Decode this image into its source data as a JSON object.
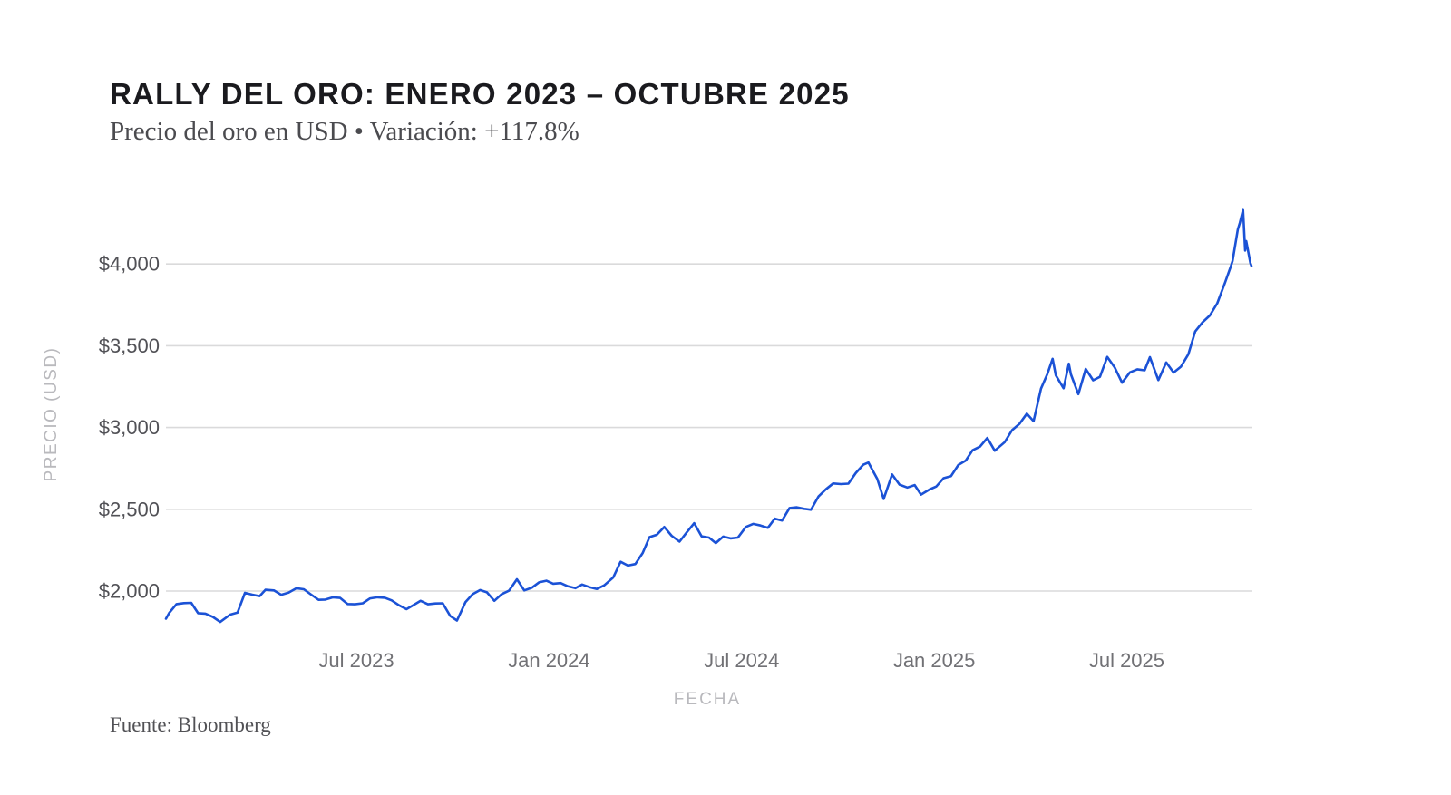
{
  "header": {
    "title": "RALLY DEL ORO: ENERO 2023 – OCTUBRE 2025",
    "subtitle": "Precio del oro en USD • Variación: +117.8%"
  },
  "source": "Fuente: Bloomberg",
  "chart_data": {
    "type": "line",
    "title": "RALLY DEL ORO: ENERO 2023 – OCTUBRE 2025",
    "subtitle": "Precio del oro en USD • Variación: +117.8%",
    "change_pct": "+117.8%",
    "xlabel": "FECHA",
    "ylabel": "PRECIO (USD)",
    "x_range": [
      "2023-01-03",
      "2025-10-28"
    ],
    "ylim": [
      1780,
      4440
    ],
    "grid": true,
    "legend": "none",
    "line_color": "#1b52d6",
    "gridline_color": "#dadadb",
    "y_ticks": [
      {
        "value": 2000,
        "label": "$2,000"
      },
      {
        "value": 2500,
        "label": "$2,500"
      },
      {
        "value": 3000,
        "label": "$3,000"
      },
      {
        "value": 3500,
        "label": "$3,500"
      },
      {
        "value": 4000,
        "label": "$4,000"
      }
    ],
    "x_ticks": [
      {
        "date": "2023-07-01",
        "label": "Jul 2023"
      },
      {
        "date": "2024-01-01",
        "label": "Jan 2024"
      },
      {
        "date": "2024-07-01",
        "label": "Jul 2024"
      },
      {
        "date": "2025-01-01",
        "label": "Jan 2025"
      },
      {
        "date": "2025-07-01",
        "label": "Jul 2025"
      }
    ],
    "series": [
      {
        "name": "Precio del oro (USD)",
        "points": [
          [
            "2023-01-03",
            1831
          ],
          [
            "2023-01-06",
            1866
          ],
          [
            "2023-01-13",
            1920
          ],
          [
            "2023-01-20",
            1926
          ],
          [
            "2023-01-27",
            1928
          ],
          [
            "2023-02-03",
            1865
          ],
          [
            "2023-02-10",
            1862
          ],
          [
            "2023-02-17",
            1842
          ],
          [
            "2023-02-24",
            1811
          ],
          [
            "2023-03-03",
            1856
          ],
          [
            "2023-03-10",
            1868
          ],
          [
            "2023-03-17",
            1989
          ],
          [
            "2023-03-24",
            1978
          ],
          [
            "2023-03-31",
            1969
          ],
          [
            "2023-04-06",
            2008
          ],
          [
            "2023-04-14",
            2004
          ],
          [
            "2023-04-21",
            1977
          ],
          [
            "2023-04-28",
            1990
          ],
          [
            "2023-05-05",
            2017
          ],
          [
            "2023-05-12",
            2011
          ],
          [
            "2023-05-19",
            1978
          ],
          [
            "2023-05-26",
            1946
          ],
          [
            "2023-06-02",
            1948
          ],
          [
            "2023-06-09",
            1961
          ],
          [
            "2023-06-16",
            1958
          ],
          [
            "2023-06-23",
            1921
          ],
          [
            "2023-06-30",
            1919
          ],
          [
            "2023-07-07",
            1925
          ],
          [
            "2023-07-14",
            1955
          ],
          [
            "2023-07-21",
            1962
          ],
          [
            "2023-07-28",
            1959
          ],
          [
            "2023-08-04",
            1943
          ],
          [
            "2023-08-11",
            1913
          ],
          [
            "2023-08-18",
            1889
          ],
          [
            "2023-08-25",
            1915
          ],
          [
            "2023-09-01",
            1940
          ],
          [
            "2023-09-08",
            1919
          ],
          [
            "2023-09-15",
            1924
          ],
          [
            "2023-09-22",
            1925
          ],
          [
            "2023-09-29",
            1848
          ],
          [
            "2023-10-05",
            1820
          ],
          [
            "2023-10-13",
            1932
          ],
          [
            "2023-10-20",
            1981
          ],
          [
            "2023-10-27",
            2006
          ],
          [
            "2023-11-03",
            1992
          ],
          [
            "2023-11-10",
            1940
          ],
          [
            "2023-11-17",
            1981
          ],
          [
            "2023-11-24",
            2002
          ],
          [
            "2023-12-01",
            2072
          ],
          [
            "2023-12-08",
            2004
          ],
          [
            "2023-12-15",
            2020
          ],
          [
            "2023-12-22",
            2053
          ],
          [
            "2023-12-29",
            2063
          ],
          [
            "2024-01-05",
            2045
          ],
          [
            "2024-01-12",
            2049
          ],
          [
            "2024-01-19",
            2029
          ],
          [
            "2024-01-26",
            2018
          ],
          [
            "2024-02-02",
            2040
          ],
          [
            "2024-02-09",
            2024
          ],
          [
            "2024-02-16",
            2013
          ],
          [
            "2024-02-23",
            2035
          ],
          [
            "2024-03-01",
            2083
          ],
          [
            "2024-03-08",
            2179
          ],
          [
            "2024-03-15",
            2156
          ],
          [
            "2024-03-22",
            2165
          ],
          [
            "2024-03-29",
            2233
          ],
          [
            "2024-04-05",
            2330
          ],
          [
            "2024-04-12",
            2344
          ],
          [
            "2024-04-19",
            2392
          ],
          [
            "2024-04-26",
            2338
          ],
          [
            "2024-05-03",
            2302
          ],
          [
            "2024-05-10",
            2360
          ],
          [
            "2024-05-17",
            2415
          ],
          [
            "2024-05-24",
            2334
          ],
          [
            "2024-05-31",
            2327
          ],
          [
            "2024-06-07",
            2293
          ],
          [
            "2024-06-14",
            2333
          ],
          [
            "2024-06-21",
            2322
          ],
          [
            "2024-06-28",
            2327
          ],
          [
            "2024-07-05",
            2392
          ],
          [
            "2024-07-12",
            2411
          ],
          [
            "2024-07-19",
            2401
          ],
          [
            "2024-07-26",
            2387
          ],
          [
            "2024-08-02",
            2443
          ],
          [
            "2024-08-09",
            2431
          ],
          [
            "2024-08-16",
            2508
          ],
          [
            "2024-08-23",
            2512
          ],
          [
            "2024-08-30",
            2503
          ],
          [
            "2024-09-06",
            2497
          ],
          [
            "2024-09-13",
            2578
          ],
          [
            "2024-09-20",
            2622
          ],
          [
            "2024-09-27",
            2658
          ],
          [
            "2024-10-04",
            2654
          ],
          [
            "2024-10-11",
            2657
          ],
          [
            "2024-10-18",
            2722
          ],
          [
            "2024-10-25",
            2772
          ],
          [
            "2024-10-30",
            2786
          ],
          [
            "2024-11-08",
            2685
          ],
          [
            "2024-11-14",
            2563
          ],
          [
            "2024-11-22",
            2713
          ],
          [
            "2024-11-29",
            2651
          ],
          [
            "2024-12-06",
            2633
          ],
          [
            "2024-12-13",
            2648
          ],
          [
            "2024-12-19",
            2590
          ],
          [
            "2024-12-27",
            2621
          ],
          [
            "2025-01-03",
            2639
          ],
          [
            "2025-01-10",
            2690
          ],
          [
            "2025-01-17",
            2703
          ],
          [
            "2025-01-24",
            2771
          ],
          [
            "2025-01-31",
            2798
          ],
          [
            "2025-02-07",
            2861
          ],
          [
            "2025-02-14",
            2883
          ],
          [
            "2025-02-21",
            2936
          ],
          [
            "2025-02-28",
            2858
          ],
          [
            "2025-03-07",
            2910
          ],
          [
            "2025-03-14",
            2984
          ],
          [
            "2025-03-21",
            3022
          ],
          [
            "2025-03-28",
            3085
          ],
          [
            "2025-04-04",
            3038
          ],
          [
            "2025-04-11",
            3238
          ],
          [
            "2025-04-17",
            3327
          ],
          [
            "2025-04-22",
            3420
          ],
          [
            "2025-04-25",
            3320
          ],
          [
            "2025-05-02",
            3240
          ],
          [
            "2025-05-07",
            3390
          ],
          [
            "2025-05-09",
            3325
          ],
          [
            "2025-05-16",
            3204
          ],
          [
            "2025-05-23",
            3358
          ],
          [
            "2025-05-30",
            3289
          ],
          [
            "2025-06-06",
            3310
          ],
          [
            "2025-06-13",
            3432
          ],
          [
            "2025-06-20",
            3368
          ],
          [
            "2025-06-27",
            3274
          ],
          [
            "2025-07-04",
            3337
          ],
          [
            "2025-07-11",
            3356
          ],
          [
            "2025-07-18",
            3350
          ],
          [
            "2025-07-23",
            3430
          ],
          [
            "2025-07-31",
            3290
          ],
          [
            "2025-08-08",
            3398
          ],
          [
            "2025-08-15",
            3336
          ],
          [
            "2025-08-22",
            3372
          ],
          [
            "2025-08-29",
            3448
          ],
          [
            "2025-09-05",
            3587
          ],
          [
            "2025-09-12",
            3643
          ],
          [
            "2025-09-19",
            3685
          ],
          [
            "2025-09-26",
            3760
          ],
          [
            "2025-10-03",
            3887
          ],
          [
            "2025-10-08",
            3977
          ],
          [
            "2025-10-10",
            4018
          ],
          [
            "2025-10-15",
            4210
          ],
          [
            "2025-10-17",
            4252
          ],
          [
            "2025-10-20",
            4330
          ],
          [
            "2025-10-22",
            4082
          ],
          [
            "2025-10-23",
            4140
          ],
          [
            "2025-10-27",
            4005
          ],
          [
            "2025-10-28",
            3988
          ]
        ]
      }
    ]
  }
}
